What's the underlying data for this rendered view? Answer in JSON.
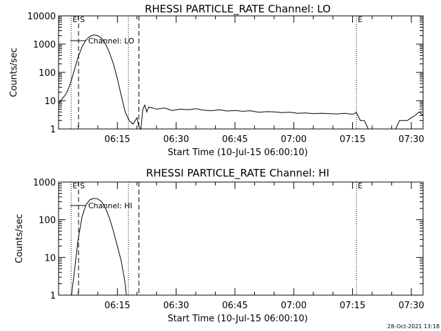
{
  "footer": {
    "timestamp": "28-Oct-2021 13:18"
  },
  "chart_data": [
    {
      "type": "line",
      "title": "RHESSI PARTICLE_RATE Channel: LO",
      "xlabel": "Start Time (10-Jul-15 06:00:10)",
      "ylabel": "Counts/sec",
      "yscale": "log",
      "ylim": [
        1,
        10000
      ],
      "xlim_minutes": [
        0,
        93
      ],
      "x_ticks": [
        {
          "label": "06:15",
          "minute": 15
        },
        {
          "label": "06:30",
          "minute": 30
        },
        {
          "label": "06:45",
          "minute": 45
        },
        {
          "label": "07:00",
          "minute": 60
        },
        {
          "label": "07:15",
          "minute": 75
        },
        {
          "label": "07:30",
          "minute": 90
        }
      ],
      "y_ticks": [
        {
          "label": "1",
          "value": 1
        },
        {
          "label": "10",
          "value": 10
        },
        {
          "label": "100",
          "value": 100
        },
        {
          "label": "1000",
          "value": 1000
        },
        {
          "label": "10000",
          "value": 10000
        }
      ],
      "markers": [
        {
          "kind": "dotted",
          "minute": 3.2,
          "label": "E"
        },
        {
          "kind": "dashed",
          "minute": 5.1,
          "label": "S"
        },
        {
          "kind": "dotted",
          "minute": 17.8,
          "label": ""
        },
        {
          "kind": "dashed",
          "minute": 20.5,
          "label": ""
        },
        {
          "kind": "dotted",
          "minute": 76.0,
          "label": "E"
        },
        {
          "kind": "dotted",
          "minute": 93.0,
          "label": ""
        }
      ],
      "series": [
        {
          "name": "Channel: LO",
          "x": [
            0,
            1,
            2,
            3,
            4,
            5,
            6,
            7,
            8,
            9,
            10,
            11,
            12,
            13,
            14,
            15,
            16,
            17,
            18,
            19,
            20,
            20.5,
            21,
            21.5,
            22,
            22.5,
            23,
            25,
            27,
            29,
            31,
            33,
            35,
            37,
            39,
            41,
            43,
            45,
            47,
            49,
            51,
            53,
            55,
            57,
            59,
            61,
            63,
            65,
            67,
            69,
            71,
            73,
            75,
            76,
            77,
            78,
            79,
            80,
            81,
            82,
            83,
            84,
            85,
            86,
            87,
            88,
            89,
            90,
            91,
            92,
            93
          ],
          "y": [
            8,
            12,
            18,
            40,
            120,
            350,
            800,
            1400,
            1900,
            2100,
            2000,
            1600,
            1000,
            500,
            200,
            60,
            15,
            4,
            2,
            1.5,
            2.5,
            1.2,
            1,
            5,
            7,
            4,
            6,
            5,
            5.5,
            4.5,
            5,
            4.8,
            5.2,
            4.6,
            4.4,
            4.8,
            4.3,
            4.5,
            4.2,
            4.4,
            3.9,
            4.1,
            4.0,
            3.8,
            3.9,
            3.6,
            3.7,
            3.5,
            3.6,
            3.5,
            3.4,
            3.6,
            3.3,
            3.8,
            2,
            2,
            1,
            1,
            1,
            1,
            1,
            1,
            1,
            1,
            2,
            2,
            2,
            2.5,
            3,
            4,
            3
          ]
        }
      ]
    },
    {
      "type": "line",
      "title": "RHESSI PARTICLE_RATE Channel: HI",
      "xlabel": "Start Time (10-Jul-15 06:00:10)",
      "ylabel": "Counts/sec",
      "yscale": "log",
      "ylim": [
        1,
        1000
      ],
      "xlim_minutes": [
        0,
        93
      ],
      "x_ticks": [
        {
          "label": "06:15",
          "minute": 15
        },
        {
          "label": "06:30",
          "minute": 30
        },
        {
          "label": "06:45",
          "minute": 45
        },
        {
          "label": "07:00",
          "minute": 60
        },
        {
          "label": "07:15",
          "minute": 75
        },
        {
          "label": "07:30",
          "minute": 90
        }
      ],
      "y_ticks": [
        {
          "label": "1",
          "value": 1
        },
        {
          "label": "10",
          "value": 10
        },
        {
          "label": "100",
          "value": 100
        },
        {
          "label": "1000",
          "value": 1000
        }
      ],
      "markers": [
        {
          "kind": "dotted",
          "minute": 3.2,
          "label": "E"
        },
        {
          "kind": "dashed",
          "minute": 5.1,
          "label": "S"
        },
        {
          "kind": "dotted",
          "minute": 17.8,
          "label": ""
        },
        {
          "kind": "dashed",
          "minute": 20.5,
          "label": ""
        },
        {
          "kind": "dotted",
          "minute": 76.0,
          "label": "E"
        },
        {
          "kind": "dotted",
          "minute": 93.0,
          "label": ""
        }
      ],
      "series": [
        {
          "name": "Channel: HI",
          "x": [
            3.3,
            4,
            5,
            6,
            7,
            8,
            9,
            10,
            11,
            12,
            13,
            14,
            15,
            16,
            16.5,
            17,
            17.3
          ],
          "y": [
            1,
            4,
            30,
            120,
            250,
            340,
            370,
            360,
            300,
            200,
            110,
            50,
            20,
            8,
            4,
            2,
            1
          ]
        }
      ]
    }
  ]
}
